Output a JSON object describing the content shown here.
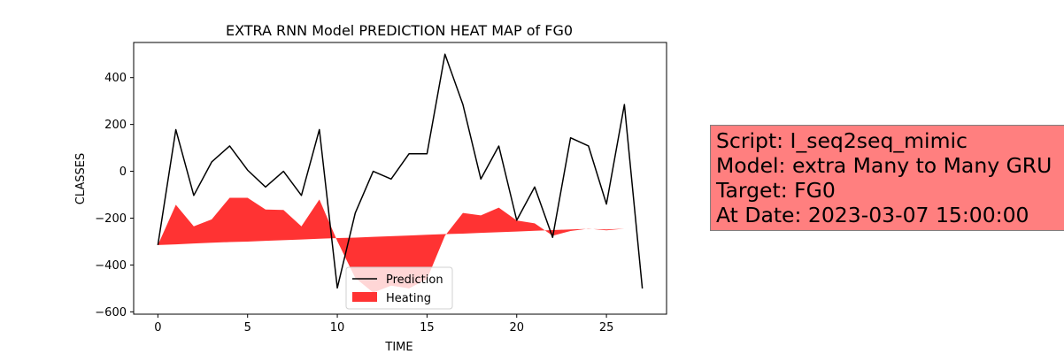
{
  "chart_data": {
    "type": "line",
    "title": "EXTRA RNN Model PREDICTION HEAT MAP of FG0",
    "xlabel": "TIME",
    "ylabel": "CLASSES",
    "xlim": [
      -1.35,
      28.35
    ],
    "ylim": [
      -610,
      550
    ],
    "xticks": [
      0,
      5,
      10,
      15,
      20,
      25
    ],
    "yticks": [
      -600,
      -400,
      -200,
      0,
      200,
      400
    ],
    "grid": false,
    "legend_position": "lower-center",
    "series": [
      {
        "name": "Prediction",
        "kind": "line",
        "color": "#000000",
        "x": [
          0,
          1,
          2,
          3,
          4,
          5,
          6,
          7,
          8,
          9,
          10,
          11,
          12,
          13,
          14,
          15,
          16,
          17,
          18,
          19,
          20,
          21,
          22,
          23,
          24,
          25,
          26,
          27
        ],
        "y": [
          -315,
          178,
          -103,
          40,
          108,
          5,
          -67,
          0,
          -103,
          178,
          -498,
          -178,
          0,
          -33,
          75,
          75,
          500,
          285,
          -33,
          108,
          -209,
          -67,
          -282,
          143,
          108,
          -140,
          285,
          -500
        ]
      },
      {
        "name": "Heating",
        "kind": "fill_between",
        "color": "#ff0000",
        "alpha": 0.8,
        "x": [
          0,
          1,
          2,
          3,
          4,
          5,
          6,
          7,
          8,
          9,
          10,
          11,
          12,
          13,
          14,
          15,
          16,
          17,
          18,
          19,
          20,
          21,
          22,
          23,
          24,
          25,
          26,
          27
        ],
        "y_upper": [
          -315,
          -143,
          -235,
          -205,
          -113,
          -113,
          -163,
          -165,
          -235,
          -120,
          -298,
          -455,
          -518,
          -488,
          -500,
          -460,
          -275,
          -178,
          -188,
          -155,
          -210,
          -222,
          -275,
          -255,
          -245,
          -252,
          -245,
          -245
        ],
        "y_lower": [
          -315,
          -312,
          -308,
          -305,
          -302,
          -300,
          -297,
          -294,
          -291,
          -288,
          -285,
          -283,
          -280,
          -277,
          -274,
          -271,
          -268,
          -266,
          -263,
          -260,
          -257,
          -254,
          -251,
          -248,
          -246,
          -248,
          -245,
          -245
        ]
      }
    ]
  },
  "info_box": {
    "lines": [
      "Script: I_seq2seq_mimic",
      "Model: extra Many to Many GRU",
      "Target: FG0",
      "At Date: 2023-03-07 15:00:00"
    ],
    "background": "#ff7f7f"
  }
}
